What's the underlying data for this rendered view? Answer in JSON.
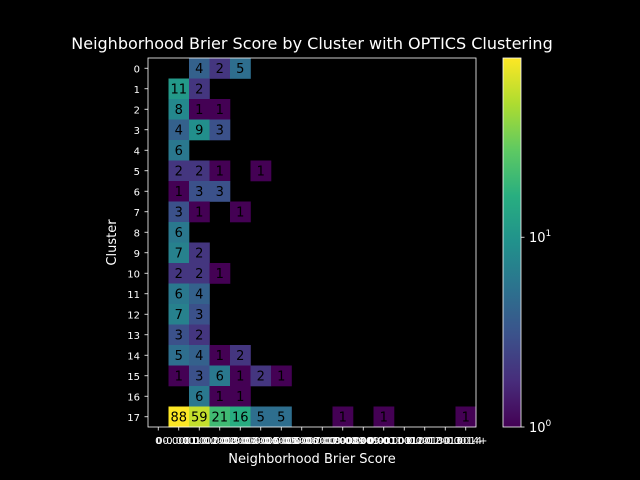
{
  "chart_data": {
    "type": "heatmap",
    "title": "Neighborhood Brier Score by Cluster with OPTICS Clustering",
    "xlabel": "Neighborhood Brier Score",
    "ylabel": "Cluster",
    "x_tick_labels": [
      "0",
      "0-0.0001",
      "0.0001-0.0002",
      "0.0002-0.0003",
      "0.0003-0.0004",
      "0.0004-0.0005",
      "0.0005-0.0006",
      "0.0006-0.0007",
      "0.0007-0.0008",
      "0.0008-0.0009",
      "0.0009-0.001",
      "0.001-0.0011",
      "0.0011-0.0012",
      "0.0012-0.0013",
      "0.0013-0.0014",
      "0.0014+"
    ],
    "y_tick_labels": [
      "0",
      "1",
      "2",
      "3",
      "4",
      "5",
      "6",
      "7",
      "8",
      "9",
      "10",
      "11",
      "12",
      "13",
      "14",
      "15",
      "16",
      "17"
    ],
    "values": [
      [
        null,
        null,
        4,
        2,
        5,
        null,
        null,
        null,
        null,
        null,
        null,
        null,
        null,
        null,
        null,
        null
      ],
      [
        null,
        11,
        2,
        null,
        null,
        null,
        null,
        null,
        null,
        null,
        null,
        null,
        null,
        null,
        null,
        null
      ],
      [
        null,
        8,
        1,
        1,
        null,
        null,
        null,
        null,
        null,
        null,
        null,
        null,
        null,
        null,
        null,
        null
      ],
      [
        null,
        4,
        9,
        3,
        null,
        null,
        null,
        null,
        null,
        null,
        null,
        null,
        null,
        null,
        null,
        null
      ],
      [
        null,
        6,
        null,
        null,
        null,
        null,
        null,
        null,
        null,
        null,
        null,
        null,
        null,
        null,
        null,
        null
      ],
      [
        null,
        2,
        2,
        1,
        null,
        1,
        null,
        null,
        null,
        null,
        null,
        null,
        null,
        null,
        null,
        null
      ],
      [
        null,
        1,
        3,
        3,
        null,
        null,
        null,
        null,
        null,
        null,
        null,
        null,
        null,
        null,
        null,
        null
      ],
      [
        null,
        3,
        1,
        null,
        1,
        null,
        null,
        null,
        null,
        null,
        null,
        null,
        null,
        null,
        null,
        null
      ],
      [
        null,
        6,
        null,
        null,
        null,
        null,
        null,
        null,
        null,
        null,
        null,
        null,
        null,
        null,
        null,
        null
      ],
      [
        null,
        7,
        2,
        null,
        null,
        null,
        null,
        null,
        null,
        null,
        null,
        null,
        null,
        null,
        null,
        null
      ],
      [
        null,
        2,
        2,
        1,
        null,
        null,
        null,
        null,
        null,
        null,
        null,
        null,
        null,
        null,
        null,
        null
      ],
      [
        null,
        6,
        4,
        null,
        null,
        null,
        null,
        null,
        null,
        null,
        null,
        null,
        null,
        null,
        null,
        null
      ],
      [
        null,
        7,
        3,
        null,
        null,
        null,
        null,
        null,
        null,
        null,
        null,
        null,
        null,
        null,
        null,
        null
      ],
      [
        null,
        3,
        2,
        null,
        null,
        null,
        null,
        null,
        null,
        null,
        null,
        null,
        null,
        null,
        null,
        null
      ],
      [
        null,
        5,
        4,
        1,
        2,
        null,
        null,
        null,
        null,
        null,
        null,
        null,
        null,
        null,
        null,
        null
      ],
      [
        null,
        1,
        3,
        6,
        1,
        2,
        1,
        null,
        null,
        null,
        null,
        null,
        null,
        null,
        null,
        null
      ],
      [
        null,
        null,
        6,
        1,
        1,
        null,
        null,
        null,
        null,
        null,
        null,
        null,
        null,
        null,
        null,
        null
      ],
      [
        null,
        88,
        59,
        21,
        16,
        5,
        5,
        null,
        null,
        1,
        null,
        1,
        null,
        null,
        null,
        1
      ]
    ],
    "colorbar": {
      "scale": "log",
      "range": [
        1,
        88
      ],
      "colormap": "viridis",
      "ticks": [
        {
          "base": "10",
          "exp": "0",
          "value": 1
        },
        {
          "base": "10",
          "exp": "1",
          "value": 10
        }
      ]
    },
    "missing_color": "#000000"
  }
}
